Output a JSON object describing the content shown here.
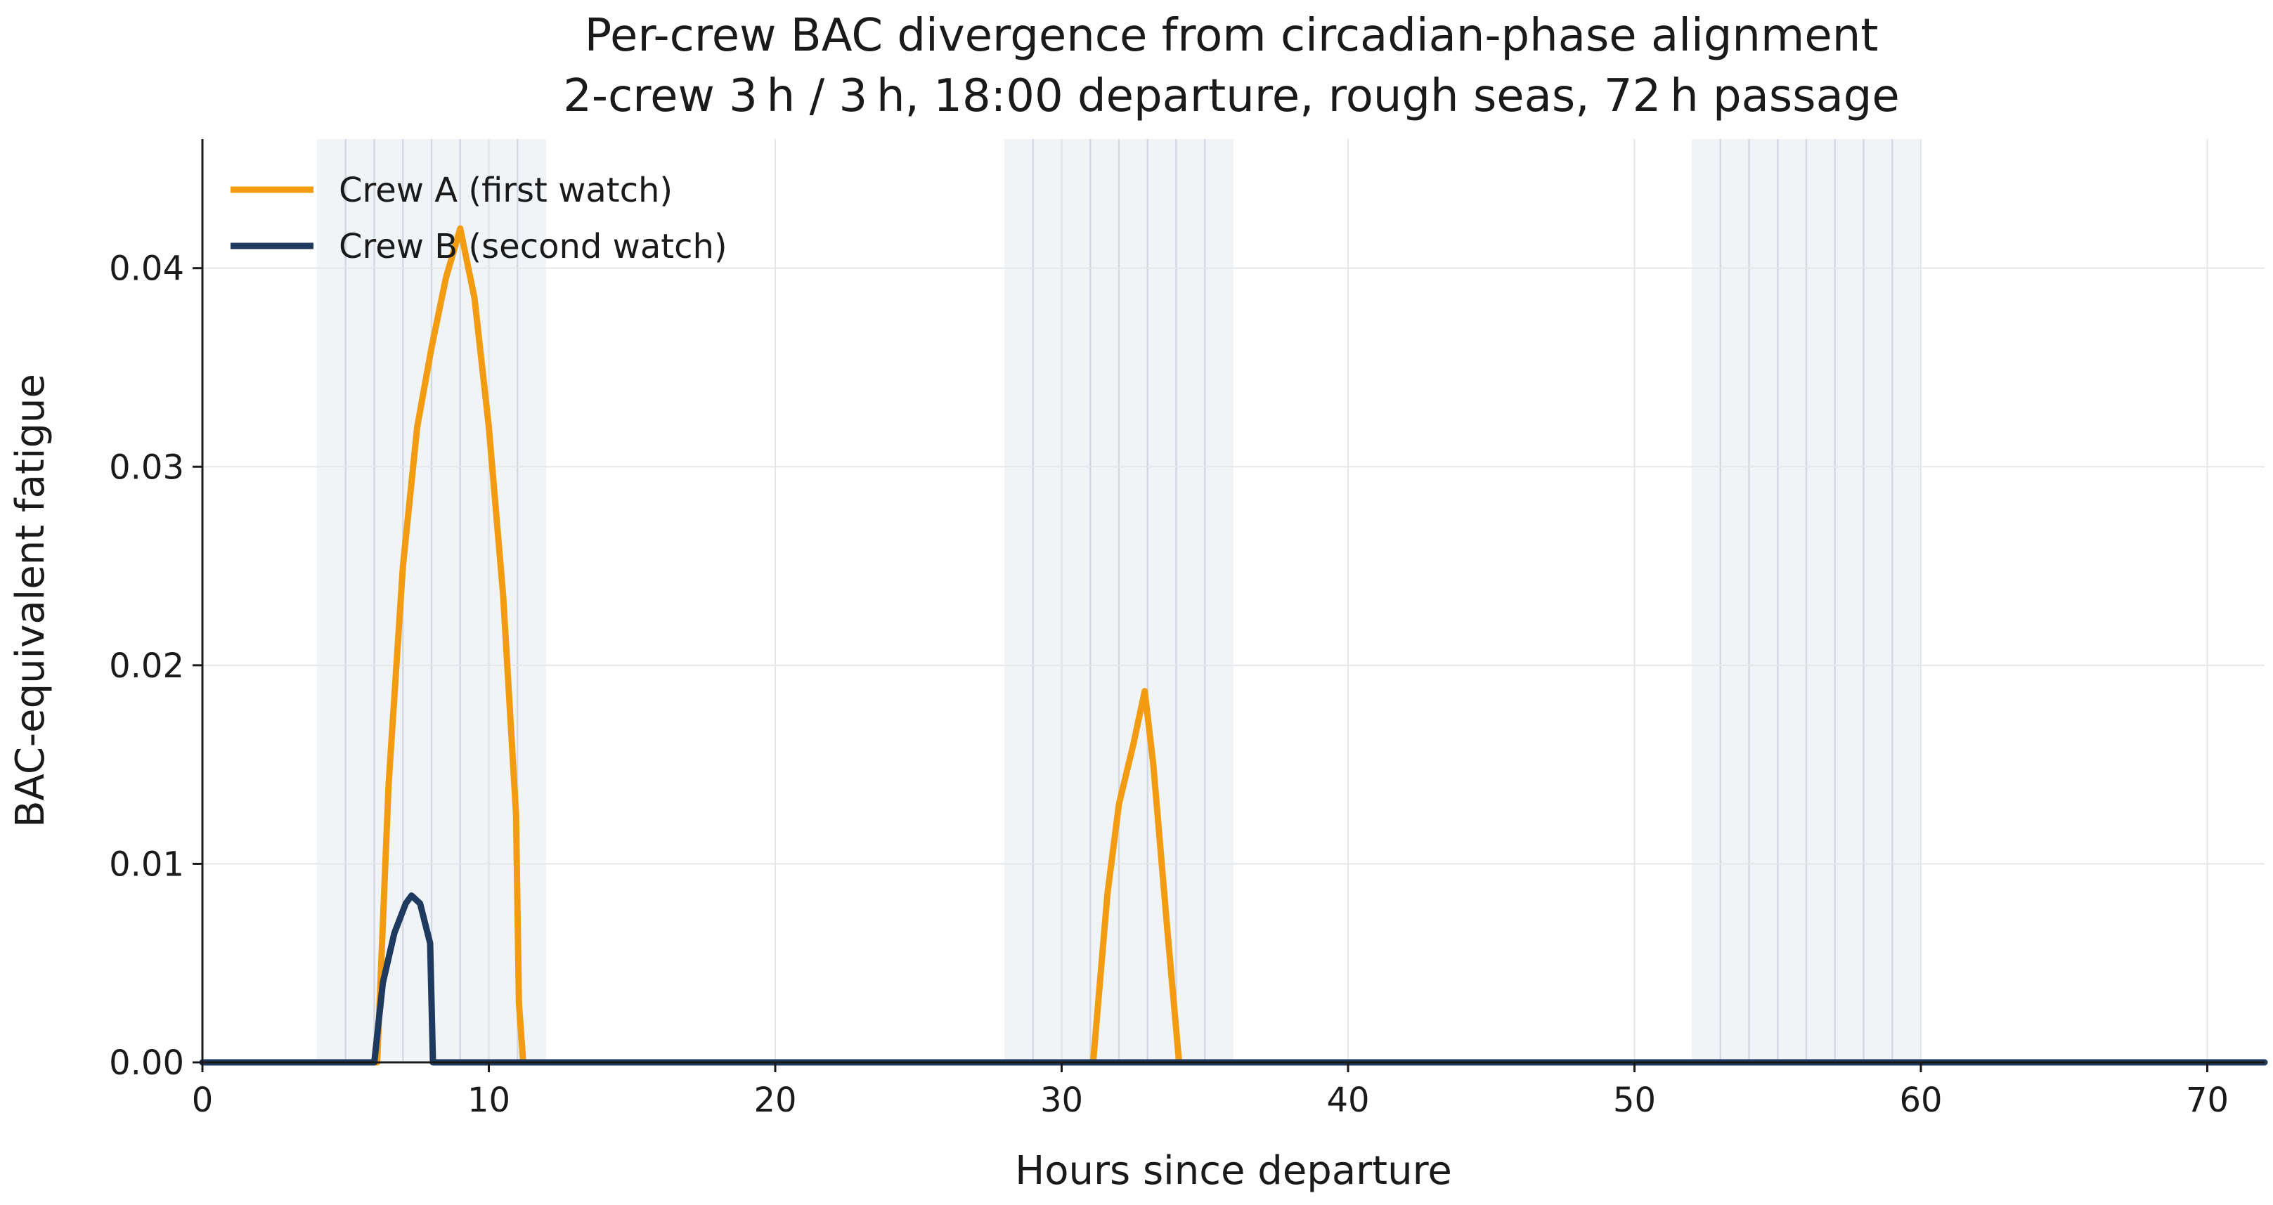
{
  "chart_data": {
    "type": "line",
    "title": "Per-crew BAC divergence from circadian-phase alignment",
    "subtitle": "2-crew 3 h / 3 h, 18:00 departure, rough seas, 72 h passage",
    "xlabel": "Hours since departure",
    "ylabel": "BAC-equivalent fatigue",
    "xlim": [
      0,
      72
    ],
    "ylim": [
      0,
      0.0465
    ],
    "x_ticks": [
      0,
      10,
      20,
      30,
      40,
      50,
      60,
      70
    ],
    "x_tick_labels": [
      "0",
      "10",
      "20",
      "30",
      "40",
      "50",
      "60",
      "70"
    ],
    "y_ticks": [
      0.0,
      0.01,
      0.02,
      0.03,
      0.04
    ],
    "y_tick_labels": [
      "0.00",
      "0.01",
      "0.02",
      "0.03",
      "0.04"
    ],
    "grid": true,
    "legend_position": "top-left",
    "night_bands": [
      {
        "start": 4,
        "end": 12
      },
      {
        "start": 28,
        "end": 36
      },
      {
        "start": 52,
        "end": 60
      }
    ],
    "watch_change_lines": [
      5,
      6,
      7,
      8,
      9,
      10,
      11,
      29,
      30,
      31,
      32,
      33,
      34,
      35,
      53,
      54,
      55,
      56,
      57,
      58,
      59
    ],
    "series": [
      {
        "name": "Crew A (first watch)",
        "color": "#f39c12",
        "points": [
          [
            0,
            0
          ],
          [
            6.1,
            0
          ],
          [
            6.5,
            0.014
          ],
          [
            7,
            0.025
          ],
          [
            7.5,
            0.032
          ],
          [
            8,
            0.036
          ],
          [
            8.5,
            0.0395
          ],
          [
            9,
            0.042
          ],
          [
            9.5,
            0.0385
          ],
          [
            10,
            0.032
          ],
          [
            10.5,
            0.0235
          ],
          [
            10.95,
            0.0125
          ],
          [
            11.05,
            0.003
          ],
          [
            11.2,
            0
          ],
          [
            31.1,
            0
          ],
          [
            31.6,
            0.0085
          ],
          [
            32,
            0.013
          ],
          [
            32.5,
            0.016
          ],
          [
            32.9,
            0.0187
          ],
          [
            33.2,
            0.015
          ],
          [
            33.7,
            0.0065
          ],
          [
            34.1,
            0
          ],
          [
            72,
            0
          ]
        ]
      },
      {
        "name": "Crew B (second watch)",
        "color": "#1f3a5f",
        "points": [
          [
            0,
            0
          ],
          [
            6,
            0
          ],
          [
            6.3,
            0.004
          ],
          [
            6.7,
            0.0065
          ],
          [
            7.1,
            0.008
          ],
          [
            7.3,
            0.0084
          ],
          [
            7.6,
            0.008
          ],
          [
            7.95,
            0.006
          ],
          [
            8.05,
            0
          ],
          [
            72,
            0
          ]
        ]
      }
    ]
  }
}
